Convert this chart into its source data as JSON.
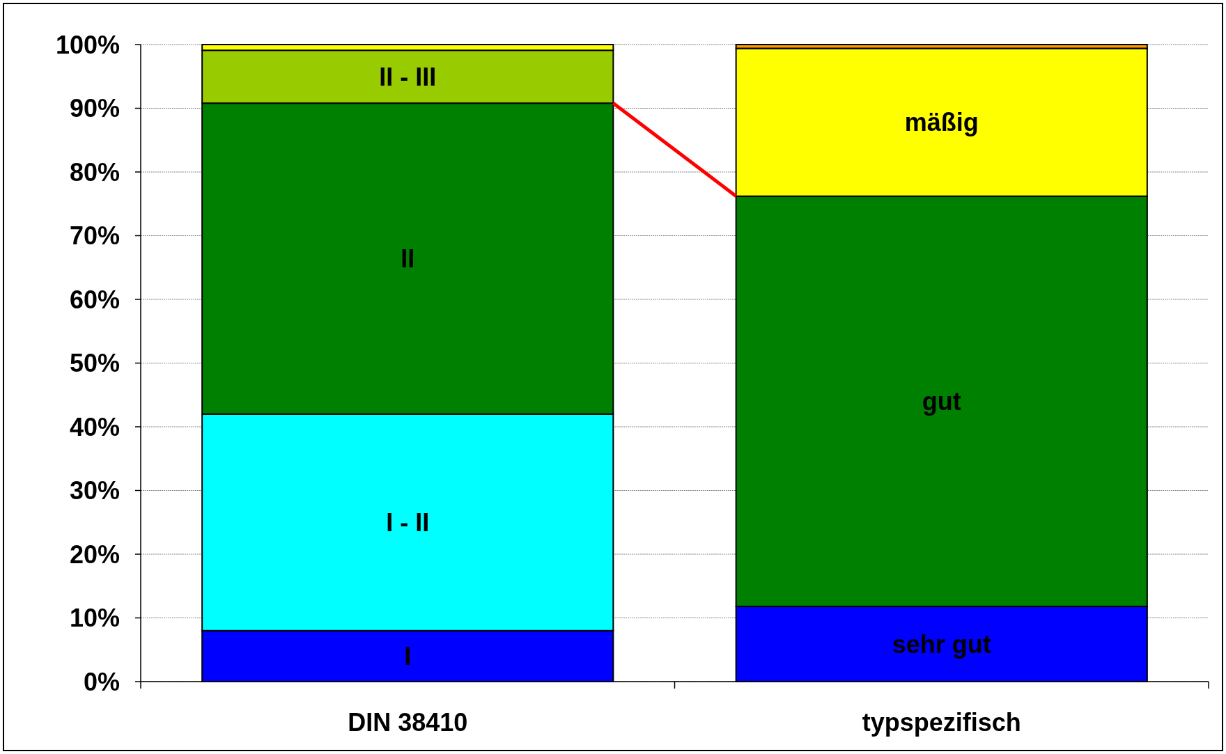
{
  "chart_data": {
    "type": "bar",
    "stacked": true,
    "categories": [
      "DIN 38410",
      "typspezifisch"
    ],
    "series": [
      {
        "colors": [
          "#0000ff",
          "#0000ff"
        ],
        "values": [
          8,
          11.8
        ],
        "value_labels": [
          "I",
          "sehr gut"
        ]
      },
      {
        "colors": [
          "#00ffff",
          "#008000"
        ],
        "values": [
          34,
          64.4
        ],
        "value_labels": [
          "I - II",
          "gut"
        ]
      },
      {
        "colors": [
          "#008000",
          "#ffff00"
        ],
        "values": [
          48.8,
          23.2
        ],
        "value_labels": [
          "II",
          "mäßig"
        ]
      },
      {
        "colors": [
          "#99cc00",
          "#ff9900"
        ],
        "values": [
          8.3,
          0.6
        ],
        "value_labels": [
          "II - III",
          null
        ]
      },
      {
        "color": "#ffff00",
        "values": [
          0.9,
          null
        ],
        "value_labels": [
          null,
          null
        ]
      }
    ],
    "ylim": [
      0,
      100
    ],
    "yticks": [
      {
        "value": 0,
        "label": "0%"
      },
      {
        "value": 10,
        "label": "10%"
      },
      {
        "value": 20,
        "label": "20%"
      },
      {
        "value": 30,
        "label": "30%"
      },
      {
        "value": 40,
        "label": "40%"
      },
      {
        "value": 50,
        "label": "50%"
      },
      {
        "value": 60,
        "label": "60%"
      },
      {
        "value": 70,
        "label": "70%"
      },
      {
        "value": 80,
        "label": "80%"
      },
      {
        "value": 90,
        "label": "90%"
      },
      {
        "value": 100,
        "label": "100%"
      }
    ],
    "grid": "y"
  }
}
